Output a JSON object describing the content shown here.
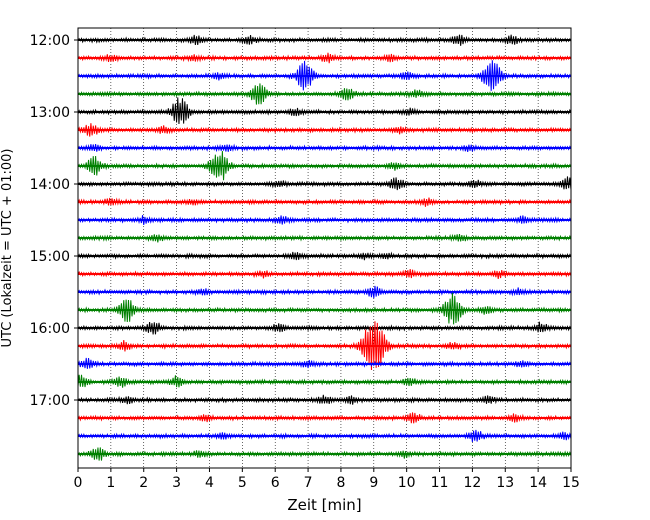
{
  "chart_data": {
    "type": "line",
    "title": "",
    "xlabel": "Zeit  [min]",
    "ylabel": "UTC (Lokalzeit = UTC + 01:00)",
    "xlim": [
      0,
      15
    ],
    "x_ticks": [
      "0",
      "1",
      "2",
      "3",
      "4",
      "5",
      "6",
      "7",
      "8",
      "9",
      "10",
      "11",
      "12",
      "13",
      "14",
      "15"
    ],
    "y_tick_labels": [
      "12:00",
      "13:00",
      "14:00",
      "15:00",
      "16:00",
      "17:00"
    ],
    "y_tick_times": [
      "12:00",
      "13:00",
      "14:00",
      "15:00",
      "16:00",
      "17:00"
    ],
    "grid": "vertical dotted at each minute",
    "trace_interval_minutes": 15,
    "trace_colors_cycle": [
      "#000000",
      "#ff0000",
      "#0000ff",
      "#008000"
    ],
    "traces": [
      {
        "start": "12:00",
        "events": [
          [
            3.6,
            4
          ],
          [
            5.2,
            4
          ],
          [
            11.6,
            5
          ],
          [
            13.2,
            4
          ]
        ]
      },
      {
        "start": "12:15",
        "events": [
          [
            1.0,
            3
          ],
          [
            3.5,
            2
          ],
          [
            7.6,
            4
          ],
          [
            9.5,
            3
          ]
        ]
      },
      {
        "start": "12:30",
        "events": [
          [
            4.3,
            3
          ],
          [
            6.9,
            14
          ],
          [
            10.0,
            4
          ],
          [
            12.6,
            16
          ]
        ]
      },
      {
        "start": "12:45",
        "events": [
          [
            5.5,
            10
          ],
          [
            8.2,
            6
          ],
          [
            10.3,
            3
          ]
        ]
      },
      {
        "start": "13:00",
        "events": [
          [
            3.1,
            14
          ],
          [
            6.6,
            3
          ],
          [
            10.1,
            3
          ]
        ]
      },
      {
        "start": "13:15",
        "events": [
          [
            0.4,
            6
          ],
          [
            2.6,
            3
          ],
          [
            9.8,
            3
          ]
        ]
      },
      {
        "start": "13:30",
        "events": [
          [
            0.5,
            3
          ],
          [
            4.5,
            3
          ],
          [
            11.9,
            3
          ]
        ]
      },
      {
        "start": "13:45",
        "events": [
          [
            0.5,
            9
          ],
          [
            4.3,
            16
          ],
          [
            9.6,
            3
          ]
        ]
      },
      {
        "start": "14:00",
        "events": [
          [
            6.1,
            3
          ],
          [
            9.7,
            6
          ],
          [
            12.1,
            3
          ],
          [
            14.9,
            6
          ]
        ]
      },
      {
        "start": "14:15",
        "events": [
          [
            1.0,
            3
          ],
          [
            3.5,
            2
          ],
          [
            10.6,
            3
          ]
        ]
      },
      {
        "start": "14:30",
        "events": [
          [
            2.0,
            3
          ],
          [
            6.2,
            4
          ],
          [
            13.5,
            3
          ]
        ]
      },
      {
        "start": "14:45",
        "events": [
          [
            2.4,
            3
          ],
          [
            11.6,
            3
          ]
        ]
      },
      {
        "start": "15:00",
        "events": [
          [
            6.6,
            3
          ],
          [
            8.7,
            3
          ],
          [
            9.4,
            3
          ]
        ]
      },
      {
        "start": "15:15",
        "events": [
          [
            5.6,
            3
          ],
          [
            10.1,
            3
          ],
          [
            12.8,
            3
          ]
        ]
      },
      {
        "start": "15:30",
        "events": [
          [
            3.8,
            3
          ],
          [
            9.0,
            5
          ],
          [
            13.4,
            3
          ]
        ]
      },
      {
        "start": "15:45",
        "events": [
          [
            1.5,
            12
          ],
          [
            11.4,
            16
          ],
          [
            12.4,
            3
          ]
        ]
      },
      {
        "start": "16:00",
        "events": [
          [
            2.3,
            6
          ],
          [
            6.1,
            3
          ],
          [
            14.1,
            5
          ]
        ]
      },
      {
        "start": "16:15",
        "events": [
          [
            1.4,
            4
          ],
          [
            9.0,
            28
          ],
          [
            11.4,
            3
          ]
        ]
      },
      {
        "start": "16:30",
        "events": [
          [
            0.3,
            5
          ],
          [
            7.0,
            3
          ],
          [
            13.5,
            3
          ]
        ]
      },
      {
        "start": "16:45",
        "events": [
          [
            0.1,
            6
          ],
          [
            1.3,
            5
          ],
          [
            3.0,
            5
          ],
          [
            10.1,
            3
          ]
        ]
      },
      {
        "start": "17:00",
        "events": [
          [
            1.5,
            3
          ],
          [
            7.5,
            4
          ],
          [
            8.3,
            3
          ],
          [
            12.5,
            3
          ]
        ]
      },
      {
        "start": "17:15",
        "events": [
          [
            3.9,
            3
          ],
          [
            10.2,
            5
          ],
          [
            13.3,
            3
          ]
        ]
      },
      {
        "start": "17:30",
        "events": [
          [
            4.4,
            3
          ],
          [
            12.1,
            6
          ],
          [
            14.8,
            3
          ]
        ]
      },
      {
        "start": "17:45",
        "events": [
          [
            0.6,
            7
          ],
          [
            3.7,
            3
          ],
          [
            9.9,
            3
          ]
        ]
      }
    ]
  }
}
